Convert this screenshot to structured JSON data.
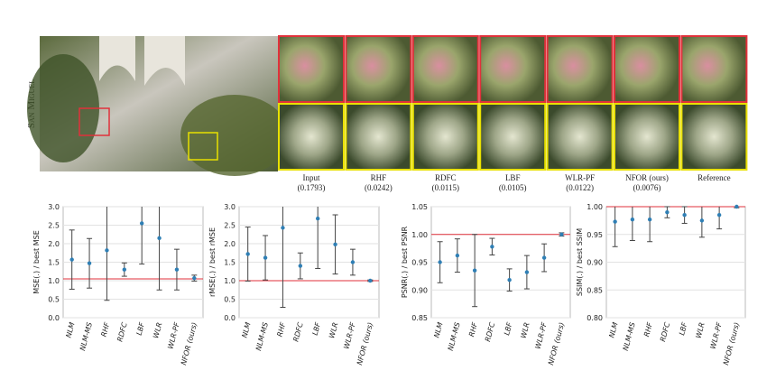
{
  "figure": {
    "scene": "San Miguel",
    "crops": [
      {
        "name": "Input",
        "score": "(0.1793)"
      },
      {
        "name": "RHF",
        "score": "(0.0242)"
      },
      {
        "name": "RDFC",
        "score": "(0.0115)"
      },
      {
        "name": "LBF",
        "score": "(0.0105)"
      },
      {
        "name": "WLR-PF",
        "score": "(0.0122)"
      },
      {
        "name": "NFOR (ours)",
        "score": "(0.0076)"
      },
      {
        "name": "Reference"
      }
    ]
  },
  "chart_data": [
    {
      "type": "errorbar",
      "y_label": "MSE(.) / best MSE",
      "categories": [
        "NLM",
        "NLM-MS",
        "RHF",
        "RDFC",
        "LBF",
        "WLR",
        "WLR-PF",
        "NFOR (ours)"
      ],
      "values": [
        1.57,
        1.47,
        1.82,
        1.3,
        2.55,
        2.15,
        1.3,
        1.07
      ],
      "errors": [
        0.8,
        0.67,
        1.35,
        0.18,
        1.1,
        1.4,
        0.55,
        0.08
      ],
      "color": "#2f7fb5",
      "reference_line": 1.05,
      "reference_color": "#e0313b",
      "ylim": [
        0,
        3
      ],
      "yticks": [
        {
          "value": 0,
          "label": "0.0"
        },
        0.5,
        {
          "value": 1,
          "label": "1.0"
        },
        1.5,
        {
          "value": 2,
          "label": "2.0"
        },
        2.5,
        {
          "value": 3,
          "label": "3.0"
        }
      ]
    },
    {
      "type": "errorbar",
      "y_label": "rMSE(.) / best rMSE",
      "categories": [
        "NLM",
        "NLM-MS",
        "RHF",
        "RDFC",
        "LBF",
        "WLR",
        "WLR-PF",
        "NFOR (ours)"
      ],
      "values": [
        1.72,
        1.62,
        2.43,
        1.4,
        2.68,
        1.98,
        1.5,
        1.0
      ],
      "errors": [
        0.73,
        0.6,
        2.15,
        0.35,
        1.35,
        0.8,
        0.35,
        0.02
      ],
      "color": "#2f7fb5",
      "reference_line": 1,
      "reference_color": "#e0313b",
      "ylim": [
        0,
        3
      ],
      "yticks": [
        {
          "value": 0,
          "label": "0.0"
        },
        0.5,
        {
          "value": 1,
          "label": "1.0"
        },
        1.5,
        {
          "value": 2,
          "label": "2.0"
        },
        2.5,
        {
          "value": 3,
          "label": "3.0"
        }
      ]
    },
    {
      "type": "errorbar",
      "y_label": "PSNR(.) / best PSNR",
      "categories": [
        "NLM",
        "NLM-MS",
        "RHF",
        "RDFC",
        "LBF",
        "WLR",
        "WLR-PF",
        "NFOR (ours)"
      ],
      "values": [
        0.95,
        0.962,
        0.935,
        0.978,
        0.918,
        0.932,
        0.958,
        1.0
      ],
      "errors": [
        0.037,
        0.03,
        0.065,
        0.015,
        0.02,
        0.03,
        0.025,
        0.003
      ],
      "color": "#2f7fb5",
      "reference_line": 1,
      "reference_color": "#e0313b",
      "ylim": [
        0.85,
        1.05
      ],
      "yticks": [
        0.85,
        {
          "value": 0.9,
          "label": "0.90"
        },
        0.95,
        {
          "value": 1,
          "label": "1.00"
        },
        1.05
      ]
    },
    {
      "type": "errorbar",
      "y_label": "SSIM(.) / best SSIM",
      "categories": [
        "NLM",
        "NLM-MS",
        "RHF",
        "RDFC",
        "LBF",
        "WLR",
        "WLR-PF",
        "NFOR (ours)"
      ],
      "values": [
        0.973,
        0.977,
        0.977,
        0.99,
        0.985,
        0.975,
        0.985,
        1.0
      ],
      "errors": [
        0.045,
        0.038,
        0.04,
        0.01,
        0.015,
        0.03,
        0.025,
        0.002
      ],
      "color": "#2f7fb5",
      "reference_line": 1,
      "reference_color": "#e0313b",
      "ylim": [
        0.8,
        1.0
      ],
      "yticks": [
        {
          "value": 0.8,
          "label": "0.80"
        },
        0.85,
        {
          "value": 0.9,
          "label": "0.90"
        },
        0.95,
        {
          "value": 1,
          "label": "1.00"
        }
      ]
    }
  ]
}
